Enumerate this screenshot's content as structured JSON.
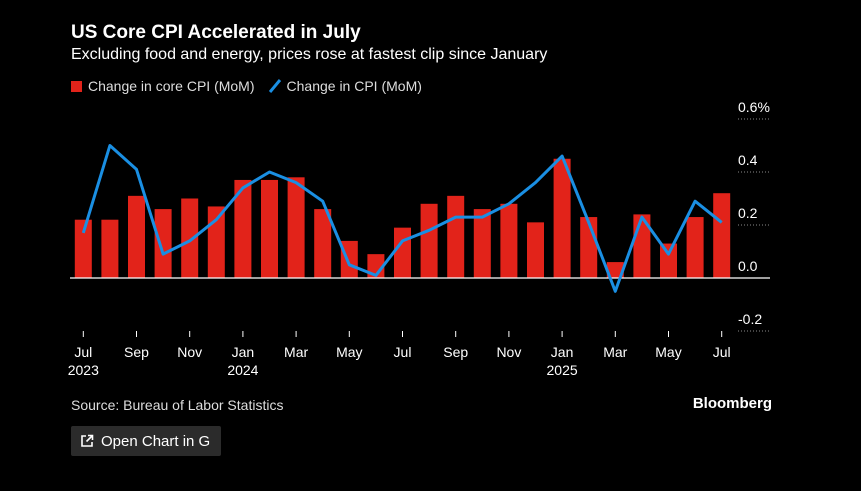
{
  "header": {
    "title": "US Core CPI Accelerated in July",
    "subtitle": "Excluding food and energy, prices rose at fastest clip since January"
  },
  "legend": {
    "bar_label": "Change in core CPI (MoM)",
    "line_label": "Change in CPI (MoM)"
  },
  "footer": {
    "source": "Source: Bureau of Labor Statistics",
    "brand": "Bloomberg",
    "open_chart_label": "Open Chart in G"
  },
  "colors": {
    "bar": "#e2231a",
    "line": "#1a8fe3",
    "background": "#000000",
    "text": "#ffffff"
  },
  "chart_data": {
    "type": "bar",
    "title": "US Core CPI Accelerated in July",
    "categories": [
      "Jul 2023",
      "Aug 2023",
      "Sep 2023",
      "Oct 2023",
      "Nov 2023",
      "Dec 2023",
      "Jan 2024",
      "Feb 2024",
      "Mar 2024",
      "Apr 2024",
      "May 2024",
      "Jun 2024",
      "Jul 2024",
      "Aug 2024",
      "Sep 2024",
      "Oct 2024",
      "Nov 2024",
      "Dec 2024",
      "Jan 2025",
      "Feb 2025",
      "Mar 2025",
      "Apr 2025",
      "May 2025",
      "Jun 2025",
      "Jul 2025"
    ],
    "series": [
      {
        "name": "Change in core CPI (MoM)",
        "type": "bar",
        "values": [
          0.22,
          0.22,
          0.31,
          0.26,
          0.3,
          0.27,
          0.37,
          0.37,
          0.38,
          0.26,
          0.14,
          0.09,
          0.19,
          0.28,
          0.31,
          0.26,
          0.28,
          0.21,
          0.45,
          0.23,
          0.06,
          0.24,
          0.13,
          0.23,
          0.32
        ]
      },
      {
        "name": "Change in CPI (MoM)",
        "type": "line",
        "values": [
          0.17,
          0.5,
          0.41,
          0.09,
          0.14,
          0.22,
          0.34,
          0.4,
          0.36,
          0.29,
          0.05,
          0.01,
          0.14,
          0.18,
          0.23,
          0.23,
          0.28,
          0.36,
          0.46,
          0.21,
          -0.05,
          0.23,
          0.09,
          0.29,
          0.21
        ]
      }
    ],
    "ylim": [
      -0.2,
      0.6
    ],
    "y_ticks": [
      "-0.2",
      "0.0",
      "0.2",
      "0.4",
      "0.6%"
    ],
    "x_ticks": [
      {
        "label": "Jul",
        "year": "2023"
      },
      {
        "label": "Sep",
        "year": ""
      },
      {
        "label": "Nov",
        "year": ""
      },
      {
        "label": "Jan",
        "year": "2024"
      },
      {
        "label": "Mar",
        "year": ""
      },
      {
        "label": "May",
        "year": ""
      },
      {
        "label": "Jul",
        "year": ""
      },
      {
        "label": "Sep",
        "year": ""
      },
      {
        "label": "Nov",
        "year": ""
      },
      {
        "label": "Jan",
        "year": "2025"
      },
      {
        "label": "Mar",
        "year": ""
      },
      {
        "label": "May",
        "year": ""
      },
      {
        "label": "Jul",
        "year": ""
      }
    ],
    "xlabel": "",
    "ylabel": "",
    "grid": true,
    "legend_position": "top-left"
  }
}
